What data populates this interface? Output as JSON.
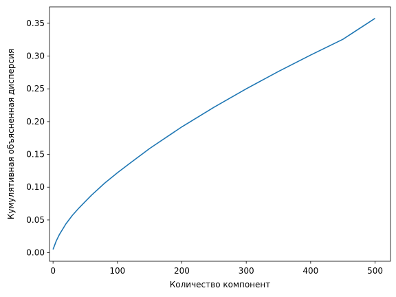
{
  "chart_data": {
    "type": "line",
    "title": "",
    "xlabel": "Количество компонент",
    "ylabel": "Кумулятивная объясненная дисперсия",
    "xlim": [
      -5.5,
      524
    ],
    "ylim": [
      -0.013,
      0.375
    ],
    "xticks": [
      0,
      100,
      200,
      300,
      400,
      500
    ],
    "xtick_labels": [
      "0",
      "100",
      "200",
      "300",
      "400",
      "500"
    ],
    "yticks": [
      0.0,
      0.05,
      0.1,
      0.15,
      0.2,
      0.25,
      0.3,
      0.35
    ],
    "ytick_labels": [
      "0.00",
      "0.05",
      "0.10",
      "0.15",
      "0.20",
      "0.25",
      "0.30",
      "0.35"
    ],
    "grid": false,
    "series": [
      {
        "color": "#1f77b4",
        "x": [
          0,
          5,
          10,
          20,
          30,
          40,
          50,
          60,
          80,
          100,
          120,
          150,
          200,
          250,
          300,
          350,
          400,
          450,
          500
        ],
        "y": [
          0.005,
          0.018,
          0.028,
          0.044,
          0.057,
          0.068,
          0.078,
          0.088,
          0.106,
          0.122,
          0.137,
          0.159,
          0.192,
          0.222,
          0.25,
          0.2765,
          0.3015,
          0.3255,
          0.3575
        ]
      }
    ]
  }
}
